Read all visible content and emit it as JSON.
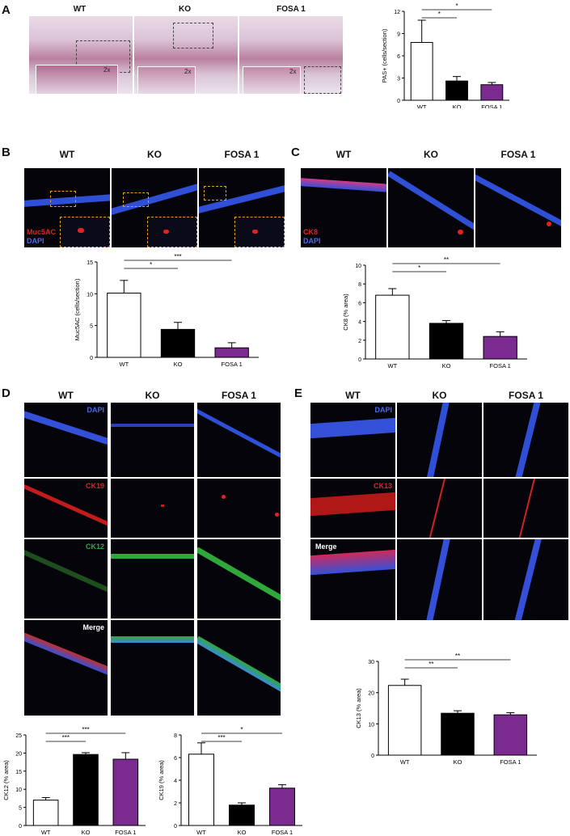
{
  "panels": {
    "A": {
      "letter": "A",
      "columns": [
        "WT",
        "KO",
        "FOSA 1"
      ],
      "inset_label": "2x"
    },
    "B": {
      "letter": "B",
      "columns": [
        "WT",
        "KO",
        "FOSA 1"
      ],
      "stain_labels": [
        "Muc5AC",
        "DAPI"
      ]
    },
    "C": {
      "letter": "C",
      "columns": [
        "WT",
        "KO",
        "FOSA 1"
      ],
      "stain_labels": [
        "CK8",
        "DAPI"
      ]
    },
    "D": {
      "letter": "D",
      "columns": [
        "WT",
        "KO",
        "FOSA 1"
      ],
      "row_labels": [
        "DAPI",
        "CK19",
        "CK12",
        "Merge"
      ]
    },
    "E": {
      "letter": "E",
      "columns": [
        "WT",
        "KO",
        "FOSA 1"
      ],
      "row_labels": [
        "DAPI",
        "CK13",
        "Merge"
      ]
    }
  },
  "colors": {
    "wt": "#ffffff",
    "ko": "#000000",
    "fosa": "#7b2a8f",
    "dapi": "#3a5fd8",
    "red_stain": "#e02424",
    "green_stain": "#2fa83a"
  },
  "chart_data": [
    {
      "id": "pas",
      "type": "bar",
      "categories": [
        "WT",
        "KO",
        "FOSA 1"
      ],
      "values": [
        7.8,
        2.6,
        2.1
      ],
      "errors": [
        3.0,
        0.6,
        0.3
      ],
      "ylabel": "PAS+ (cells/section)",
      "ylim": [
        0,
        12
      ],
      "yticks": [
        0,
        3,
        6,
        9,
        12
      ],
      "significance": [
        {
          "pair": [
            "WT",
            "KO"
          ],
          "label": "*"
        },
        {
          "pair": [
            "WT",
            "FOSA 1"
          ],
          "label": "*"
        }
      ]
    },
    {
      "id": "muc5ac",
      "type": "bar",
      "categories": [
        "WT",
        "KO",
        "FOSA 1"
      ],
      "values": [
        10.1,
        4.4,
        1.5
      ],
      "errors": [
        2.0,
        1.1,
        0.8
      ],
      "ylabel": "Muc5AC (cells/section)",
      "ylim": [
        0,
        15
      ],
      "yticks": [
        0,
        5,
        10,
        15
      ],
      "significance": [
        {
          "pair": [
            "WT",
            "KO"
          ],
          "label": "*"
        },
        {
          "pair": [
            "WT",
            "FOSA 1"
          ],
          "label": "***"
        }
      ]
    },
    {
      "id": "ck8",
      "type": "bar",
      "categories": [
        "WT",
        "KO",
        "FOSA 1"
      ],
      "values": [
        6.8,
        3.8,
        2.4
      ],
      "errors": [
        0.7,
        0.3,
        0.5
      ],
      "ylabel": "CK8 (% area)",
      "ylim": [
        0,
        10
      ],
      "yticks": [
        0,
        2,
        4,
        6,
        8,
        10
      ],
      "significance": [
        {
          "pair": [
            "WT",
            "KO"
          ],
          "label": "*"
        },
        {
          "pair": [
            "WT",
            "FOSA 1"
          ],
          "label": "**"
        }
      ]
    },
    {
      "id": "ck12",
      "type": "bar",
      "categories": [
        "WT",
        "KO",
        "FOSA 1"
      ],
      "values": [
        7.0,
        19.6,
        18.3
      ],
      "errors": [
        0.7,
        0.5,
        1.8
      ],
      "ylabel": "CK12 (% area)",
      "ylim": [
        0,
        25
      ],
      "yticks": [
        0,
        5,
        10,
        15,
        20,
        25
      ],
      "significance": [
        {
          "pair": [
            "WT",
            "KO"
          ],
          "label": "***"
        },
        {
          "pair": [
            "WT",
            "FOSA 1"
          ],
          "label": "***"
        }
      ]
    },
    {
      "id": "ck19",
      "type": "bar",
      "categories": [
        "WT",
        "KO",
        "FOSA 1"
      ],
      "values": [
        6.3,
        1.8,
        3.3
      ],
      "errors": [
        1.0,
        0.2,
        0.3
      ],
      "ylabel": "CK19 (% area)",
      "ylim": [
        0,
        8
      ],
      "yticks": [
        0,
        2,
        4,
        6,
        8
      ],
      "significance": [
        {
          "pair": [
            "WT",
            "KO"
          ],
          "label": "***"
        },
        {
          "pair": [
            "WT",
            "FOSA 1"
          ],
          "label": "*"
        }
      ]
    },
    {
      "id": "ck13",
      "type": "bar",
      "categories": [
        "WT",
        "KO",
        "FOSA 1"
      ],
      "values": [
        22.3,
        13.4,
        12.9
      ],
      "errors": [
        2.0,
        0.8,
        0.7
      ],
      "ylabel": "CK13 (% area)",
      "ylim": [
        0,
        30
      ],
      "yticks": [
        0,
        10,
        20,
        30
      ],
      "significance": [
        {
          "pair": [
            "WT",
            "KO"
          ],
          "label": "**"
        },
        {
          "pair": [
            "WT",
            "FOSA 1"
          ],
          "label": "**"
        }
      ]
    }
  ]
}
